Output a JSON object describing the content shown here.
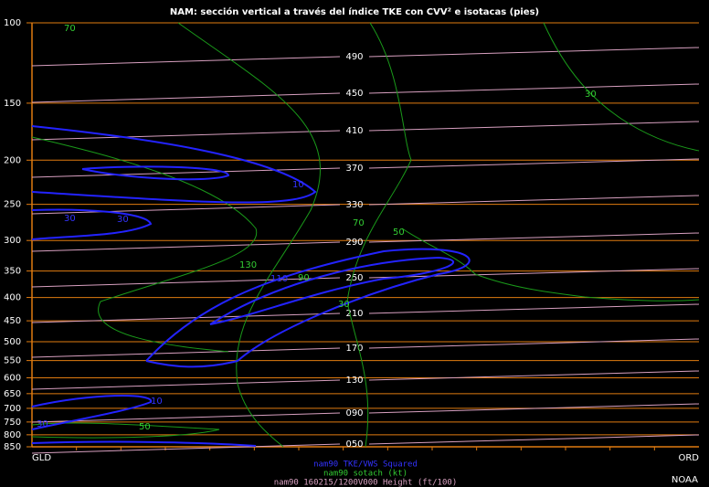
{
  "chart_data": {
    "type": "cross-section",
    "title": "NAM: sección vertical a través del índice TKE con CVV² e isotacas (pies)",
    "categories": [
      "GLD",
      "ORD"
    ],
    "ylim": [
      100,
      850
    ],
    "log_scale": true,
    "y_inverted": true,
    "yticks": [
      100,
      150,
      200,
      250,
      300,
      350,
      400,
      450,
      500,
      550,
      600,
      650,
      700,
      750,
      800,
      850
    ],
    "grid": true,
    "grid_color": "#e07b10",
    "height_color": "#d8a0c0",
    "height_labels": [
      "490",
      "450",
      "410",
      "370",
      "330",
      "290",
      "250",
      "210",
      "170",
      "130",
      "090",
      "050"
    ],
    "isotach_labels": [
      "70",
      "30",
      "70",
      "50",
      "130",
      "90",
      "30",
      "50"
    ],
    "tke_labels": [
      "10",
      "30",
      "30",
      "110",
      "10",
      "30"
    ],
    "legend": [
      "nam90 TKE/VWS Squared",
      "nam90 sotach (kt)",
      "nam90 160215/1200V000 Height (ft/100)"
    ],
    "credit": "NOAA"
  }
}
